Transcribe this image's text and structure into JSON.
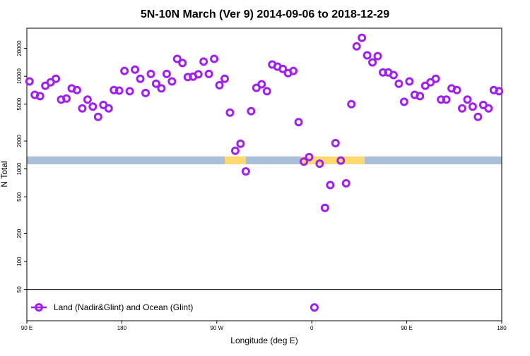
{
  "chart_data": {
    "type": "scatter",
    "title": "5N-10N March (Ver 9)   2014-09-06 to 2018-12-29",
    "xlabel": "Longitude (deg E)",
    "ylabel": "N Total",
    "x": [
      92.5,
      97.5,
      102.5,
      107.5,
      112.5,
      117.5,
      122.5,
      127.5,
      132.5,
      137.5,
      142.5,
      147.5,
      152.5,
      157.5,
      162.5,
      167.5,
      172.5,
      177.5,
      182.5,
      187.5,
      192.5,
      197.5,
      202.5,
      207.5,
      212.5,
      217.5,
      222.5,
      227.5,
      232.5,
      237.5,
      242.5,
      247.5,
      252.5,
      257.5,
      262.5,
      267.5,
      272.5,
      277.5,
      282.5,
      287.5,
      292.5,
      297.5,
      302.5,
      307.5,
      312.5,
      317.5,
      322.5,
      327.5,
      332.5,
      337.5,
      342.5,
      347.5,
      352.5,
      357.5,
      362.5,
      367.5,
      372.5,
      377.5,
      382.5,
      387.5,
      392.5,
      397.5,
      402.5,
      407.5,
      412.5,
      417.5,
      422.5,
      427.5,
      432.5,
      437.5,
      442.5,
      447.5,
      452.5,
      457.5,
      462.5,
      467.5,
      472.5,
      477.5,
      482.5,
      487.5,
      492.5,
      497.5,
      502.5,
      507.5,
      512.5,
      517.5,
      522.5,
      527.5,
      532.5,
      537.5
    ],
    "series": [
      {
        "name": "Land (Nadir&Glint) and Ocean (Glint)",
        "color": "#a020f0",
        "values": [
          8800,
          6300,
          6100,
          7900,
          8600,
          9400,
          5600,
          5750,
          7400,
          7100,
          4500,
          5600,
          4700,
          3650,
          4900,
          4500,
          7100,
          7000,
          11400,
          6900,
          11800,
          9400,
          6600,
          10600,
          8300,
          7400,
          10600,
          8800,
          15400,
          13900,
          9800,
          9900,
          10500,
          14400,
          10600,
          15400,
          8000,
          9400,
          4050,
          1570,
          1870,
          940,
          4200,
          7500,
          8200,
          6900,
          13400,
          12700,
          12000,
          10800,
          11400,
          3200,
          1200,
          1340,
          32,
          1140,
          380,
          670,
          1900,
          1230,
          700,
          5000,
          21000,
          26000,
          16800,
          14100,
          16500,
          11000,
          11000,
          10300,
          8300,
          5300,
          8800,
          6300,
          6100,
          7900,
          8600,
          9400,
          5600,
          5600,
          7400,
          7100,
          4500,
          5600,
          4700,
          3650,
          4900,
          4500,
          7100,
          6900
        ]
      }
    ],
    "xlim": [
      90,
      540
    ],
    "xticks": [
      {
        "value": 90,
        "label": "90 E"
      },
      {
        "value": 180,
        "label": "180"
      },
      {
        "value": 270,
        "label": "90 W"
      },
      {
        "value": 360,
        "label": "0"
      },
      {
        "value": 450,
        "label": "90 E"
      },
      {
        "value": 540,
        "label": "180"
      }
    ],
    "ylim": [
      23,
      33000
    ],
    "yticks": [
      50,
      100,
      200,
      500,
      1000,
      2000,
      5000,
      10000,
      20000
    ],
    "log_y": true,
    "legend": "bottom-left"
  }
}
